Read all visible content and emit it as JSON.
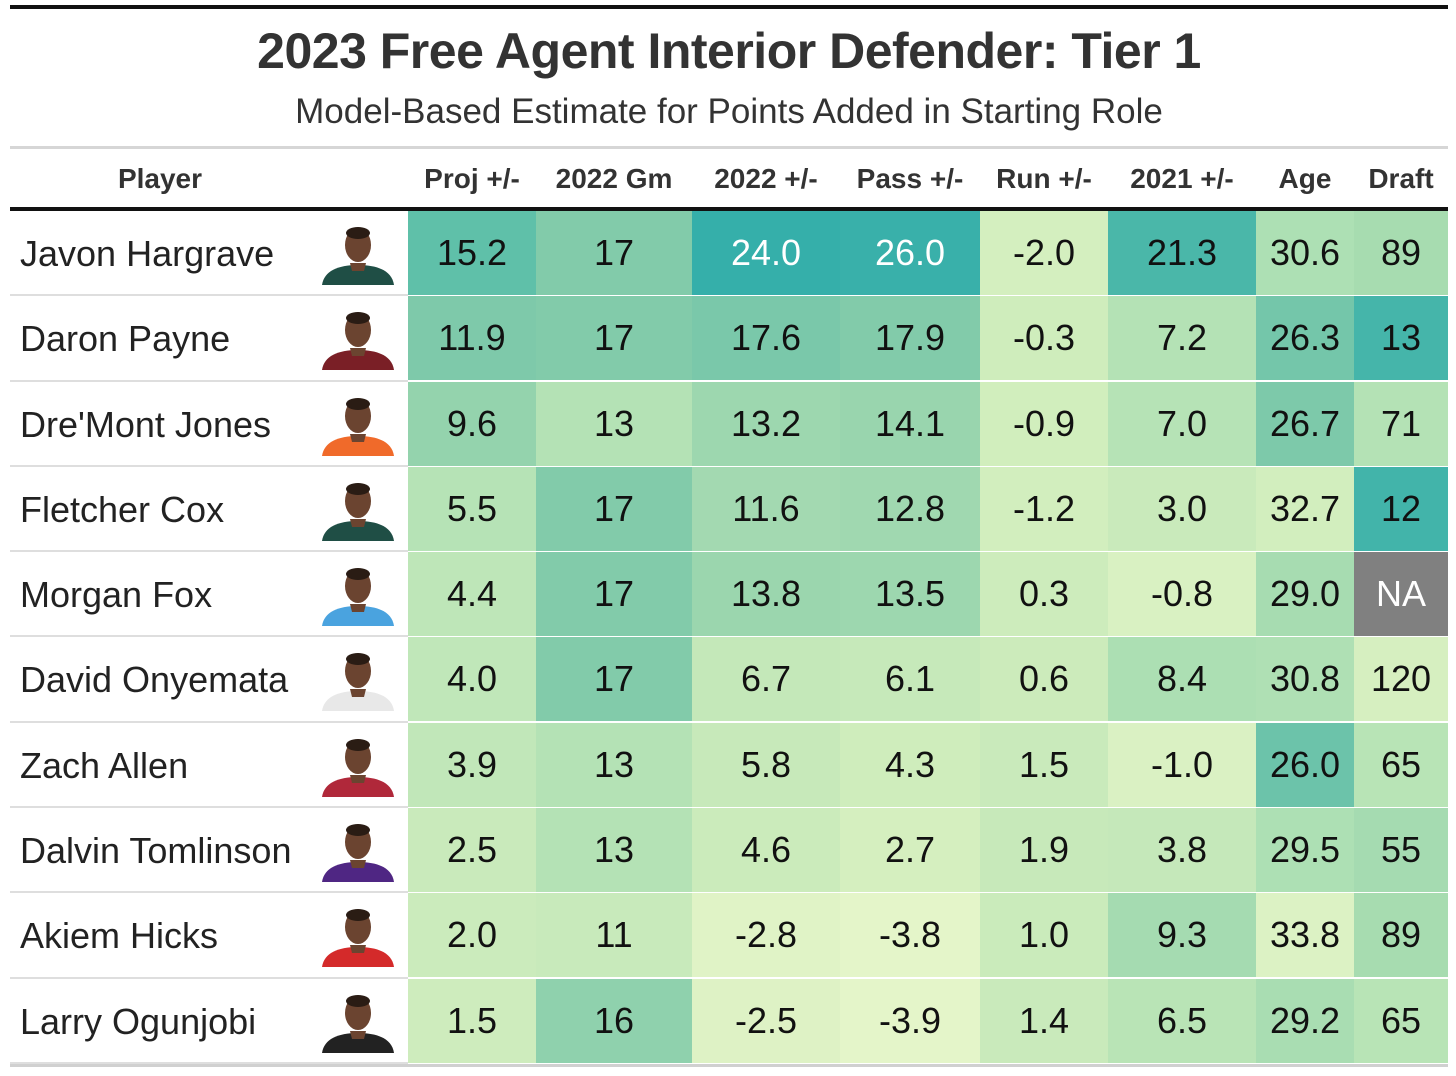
{
  "chart_data": {
    "type": "table",
    "title": "2023 Free Agent Interior Defender: Tier 1",
    "subtitle": "Model-Based Estimate for Points Added in Starting Role",
    "columns": [
      "Player",
      "Proj +/-",
      "2022 Gm",
      "2022 +/-",
      "Pass +/-",
      "Run +/-",
      "2021 +/-",
      "Age",
      "Draft"
    ],
    "rows": [
      {
        "player": "Javon Hargrave",
        "values": [
          "15.2",
          "17",
          "24.0",
          "26.0",
          "-2.0",
          "21.3",
          "30.6",
          "89"
        ],
        "colors": [
          "#5fc0a9",
          "#82cbaa",
          "#35afaa",
          "#39b0aa",
          "#d4efbf",
          "#4ab7a9",
          "#ade0b4",
          "#a7dcb0"
        ],
        "jersey": "#1f4e45"
      },
      {
        "player": "Daron Payne",
        "values": [
          "11.9",
          "17",
          "17.6",
          "17.9",
          "-0.3",
          "7.2",
          "26.3",
          "13"
        ],
        "colors": [
          "#7ec9aa",
          "#82cbaa",
          "#7ac8aa",
          "#82cbaa",
          "#cfedbc",
          "#b4e2b5",
          "#74c6aa",
          "#45b5aa"
        ],
        "jersey": "#7a1f26"
      },
      {
        "player": "Dre'Mont Jones",
        "values": [
          "9.6",
          "13",
          "13.2",
          "14.1",
          "-0.9",
          "7.0",
          "26.7",
          "71"
        ],
        "colors": [
          "#94d3ad",
          "#b4e2b5",
          "#9dd7af",
          "#99d5ae",
          "#d1eebd",
          "#b6e3b6",
          "#7dc9aa",
          "#b4e2b5"
        ],
        "jersey": "#f06a2a"
      },
      {
        "player": "Fletcher Cox",
        "values": [
          "5.5",
          "17",
          "11.6",
          "12.8",
          "-1.2",
          "3.0",
          "32.7",
          "12"
        ],
        "colors": [
          "#b6e3b6",
          "#82cbaa",
          "#a3d9b1",
          "#a0d8b0",
          "#d2eebe",
          "#c9eabb",
          "#d2eebe",
          "#42b4aa"
        ],
        "jersey": "#1f4e45"
      },
      {
        "player": "Morgan Fox",
        "values": [
          "4.4",
          "17",
          "13.8",
          "13.5",
          "0.3",
          "-0.8",
          "29.0",
          "NA"
        ],
        "colors": [
          "#bee6b8",
          "#82cbaa",
          "#9bd6ae",
          "#9dd7af",
          "#cdecbc",
          "#d9f1c2",
          "#a7dcb1",
          "#808080"
        ],
        "jersey": "#4aa3df"
      },
      {
        "player": "David Onyemata",
        "values": [
          "4.0",
          "17",
          "6.7",
          "6.1",
          "0.6",
          "8.4",
          "30.8",
          "120"
        ],
        "colors": [
          "#c0e7b9",
          "#82cbaa",
          "#c4e8b9",
          "#c6e9ba",
          "#ccebbb",
          "#acdfb3",
          "#afe0b4",
          "#d6efc0"
        ],
        "jersey": "#e8e8e8"
      },
      {
        "player": "Zach Allen",
        "values": [
          "3.9",
          "13",
          "5.8",
          "4.3",
          "1.5",
          "-1.0",
          "26.0",
          "65"
        ],
        "colors": [
          "#c1e7b9",
          "#b4e2b5",
          "#c7e9ba",
          "#cfedbc",
          "#c9eabb",
          "#daf1c3",
          "#6cc3aa",
          "#b8e4b6"
        ],
        "jersey": "#b0283a"
      },
      {
        "player": "Dalvin Tomlinson",
        "values": [
          "2.5",
          "13",
          "4.6",
          "2.7",
          "1.9",
          "3.8",
          "29.5",
          "55"
        ],
        "colors": [
          "#c9eabb",
          "#b4e2b5",
          "#cbebbb",
          "#d5efbf",
          "#c7e9ba",
          "#c5e8ba",
          "#ade0b4",
          "#a5dbb1"
        ],
        "jersey": "#4f2683"
      },
      {
        "player": "Akiem Hicks",
        "values": [
          "2.0",
          "11",
          "-2.8",
          "-3.8",
          "1.0",
          "9.3",
          "33.8",
          "89"
        ],
        "colors": [
          "#cbebbc",
          "#c8eabb",
          "#e0f3c6",
          "#e4f5c9",
          "#caebbb",
          "#a5dbb1",
          "#dcf2c4",
          "#a7dcb0"
        ],
        "jersey": "#d42a2a"
      },
      {
        "player": "Larry Ogunjobi",
        "values": [
          "1.5",
          "16",
          "-2.5",
          "-3.9",
          "1.4",
          "6.5",
          "29.2",
          "65"
        ],
        "colors": [
          "#ceecbd",
          "#8fd1ad",
          "#def2c5",
          "#e4f5c9",
          "#c9eabb",
          "#b9e4b6",
          "#a9ddb2",
          "#b8e4b6"
        ],
        "jersey": "#222222"
      }
    ]
  }
}
